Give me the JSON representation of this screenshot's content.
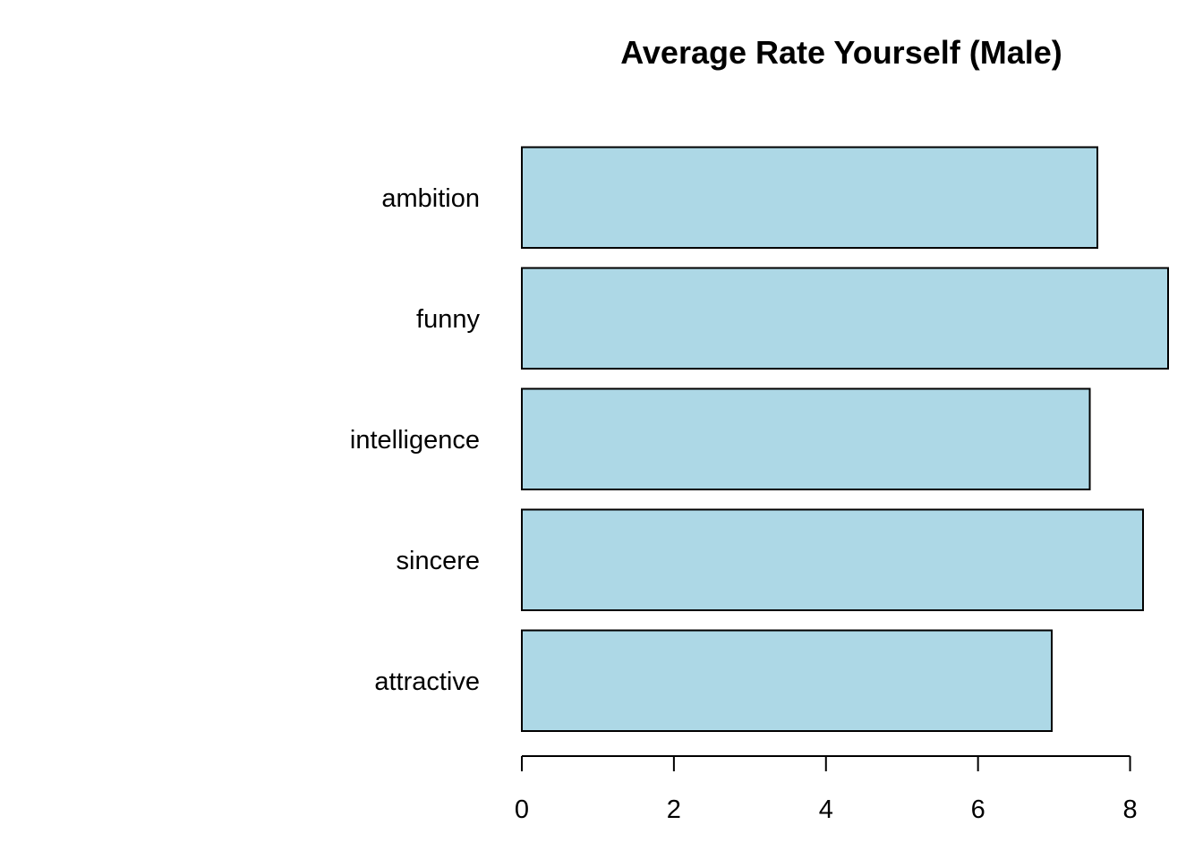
{
  "chart_data": {
    "type": "bar",
    "orientation": "horizontal",
    "title": "Average Rate Yourself (Male)",
    "xlabel": "",
    "ylabel": "",
    "categories": [
      "attractive",
      "sincere",
      "intelligence",
      "funny",
      "ambition"
    ],
    "values": [
      6.97,
      8.17,
      7.47,
      8.5,
      7.57
    ],
    "xlim": [
      0,
      8.5
    ],
    "xticks": [
      0,
      2,
      4,
      6,
      8
    ],
    "bar_color": "#add8e6",
    "grid": false,
    "legend": "none"
  }
}
